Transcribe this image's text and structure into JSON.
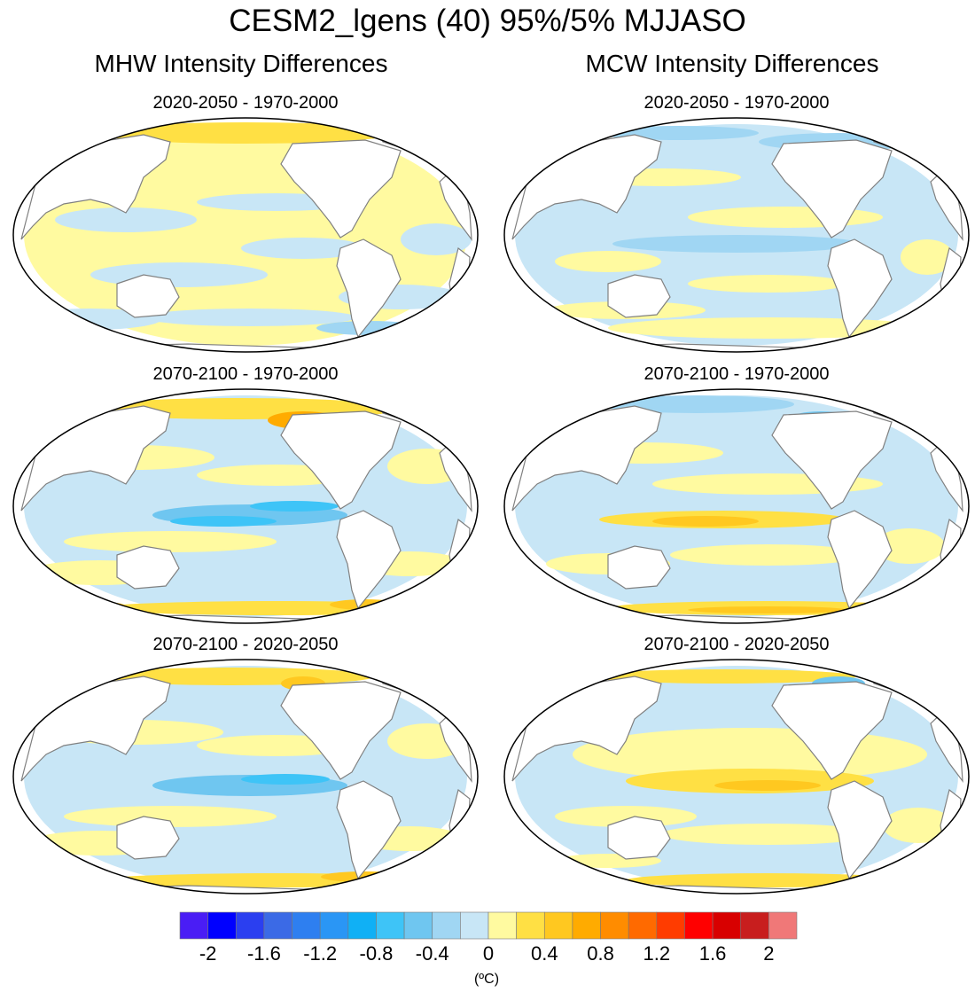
{
  "title": "CESM2_lgens (40) 95%/5% MJJASO",
  "columns": {
    "left": "MHW Intensity Differences",
    "right": "MCW Intensity Differences"
  },
  "panels": [
    {
      "title": "2020-2050 - 1970-2000",
      "variant": "mhw1"
    },
    {
      "title": "2020-2050 - 1970-2000",
      "variant": "mcw1"
    },
    {
      "title": "2070-2100 - 1970-2000",
      "variant": "mhw2"
    },
    {
      "title": "2070-2100 - 1970-2000",
      "variant": "mcw2"
    },
    {
      "title": "2070-2100 - 2020-2050",
      "variant": "mhw3"
    },
    {
      "title": "2070-2100 - 2020-2050",
      "variant": "mcw3"
    }
  ],
  "colorbar": {
    "colors": [
      "#4a1df5",
      "#0000ff",
      "#2b3ff0",
      "#3b6ae6",
      "#2e7ff0",
      "#2a96f5",
      "#10b0f5",
      "#3ec4f7",
      "#6fc6f0",
      "#a0d6f3",
      "#c8e6f6",
      "#fffaa0",
      "#ffe044",
      "#ffc820",
      "#ffab00",
      "#ff8c00",
      "#ff6a00",
      "#ff3c00",
      "#ff0000",
      "#d80000",
      "#c81e1e",
      "#f07878"
    ],
    "labels": [
      "-2",
      "-1.6",
      "-1.2",
      "-0.8",
      "-0.4",
      "0",
      "0.4",
      "0.8",
      "1.2",
      "1.6",
      "2"
    ],
    "units": "(ºC)"
  }
}
